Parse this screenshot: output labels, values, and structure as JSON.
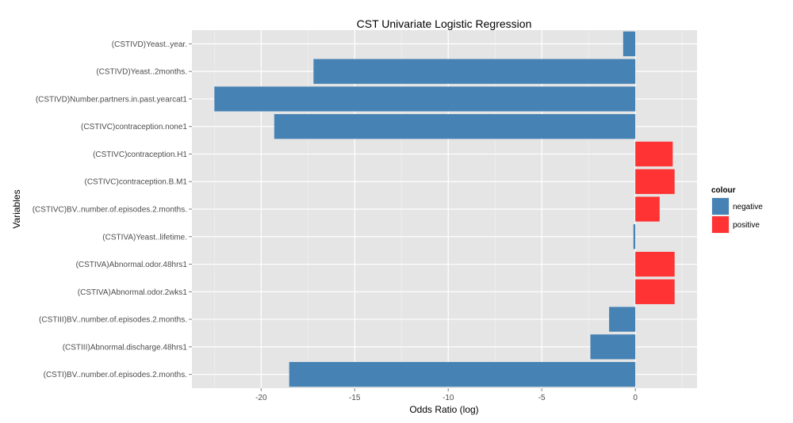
{
  "chart_data": {
    "type": "bar",
    "orientation": "horizontal",
    "title": "CST Univariate Logistic Regression",
    "xlabel": "Odds Ratio (log)",
    "ylabel": "Variables",
    "xlim": [
      -22.5,
      2.1
    ],
    "xticks": [
      -20,
      -15,
      -10,
      -5,
      0
    ],
    "grid": true,
    "categories": [
      "(CSTIVD)Yeast..year.",
      "(CSTIVD)Yeast..2months.",
      "(CSTIVD)Number.partners.in.past.yearcat1",
      "(CSTIVC)contraception.none1",
      "(CSTIVC)contraception.H1",
      "(CSTIVC)contraception.B.M1",
      "(CSTIVC)BV..number.of.episodes.2.months.",
      "(CSTIVA)Yeast..lifetime.",
      "(CSTIVA)Abnormal.odor.48hrs1",
      "(CSTIVA)Abnormal.odor.2wks1",
      "(CSTIII)BV..number.of.episodes.2.months.",
      "(CSTIII)Abnormal.discharge.48hrs1",
      "(CSTI)BV..number.of.episodes.2.months."
    ],
    "values": [
      -0.65,
      -17.2,
      -22.5,
      -19.3,
      2.0,
      2.1,
      1.3,
      -0.1,
      2.1,
      2.1,
      -1.4,
      -2.4,
      -18.5
    ],
    "groups": [
      "negative",
      "negative",
      "negative",
      "negative",
      "positive",
      "positive",
      "positive",
      "negative",
      "positive",
      "positive",
      "negative",
      "negative",
      "negative"
    ],
    "legend": {
      "title": "colour",
      "position": "right",
      "items": [
        {
          "label": "negative",
          "color": "#4682B4"
        },
        {
          "label": "positive",
          "color": "#FF3333"
        }
      ]
    }
  }
}
